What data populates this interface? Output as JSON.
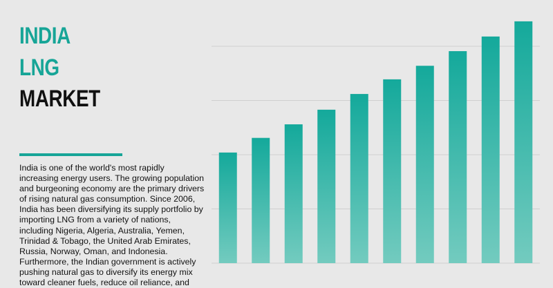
{
  "header": {
    "title_lines": [
      "INDIA",
      "LNG",
      "MARKET"
    ]
  },
  "body": {
    "paragraph": "India is one of the world's most rapidly increasing energy users. The growing population and burgeoning economy are the primary drivers of rising natural gas consumption. Since 2006, India has been diversifying its supply portfolio by importing LNG from a variety of nations, including Nigeria, Algeria, Australia, Yemen, Trinidad & Tobago, the United Arab Emirates, Russia, Norway, Oman, and Indonesia. Furthermore, the Indian government is actively pushing natural gas to diversify its energy mix toward cleaner fuels, reduce oil reliance, and"
  },
  "chart_data": {
    "type": "bar",
    "values": [
      2.04,
      2.31,
      2.56,
      2.83,
      3.12,
      3.39,
      3.64,
      3.91,
      4.18,
      4.46
    ],
    "color": "#14a99b",
    "ylim": [
      0,
      4.5
    ],
    "yticks": [
      0,
      1,
      2,
      3,
      4
    ],
    "grid": true
  }
}
